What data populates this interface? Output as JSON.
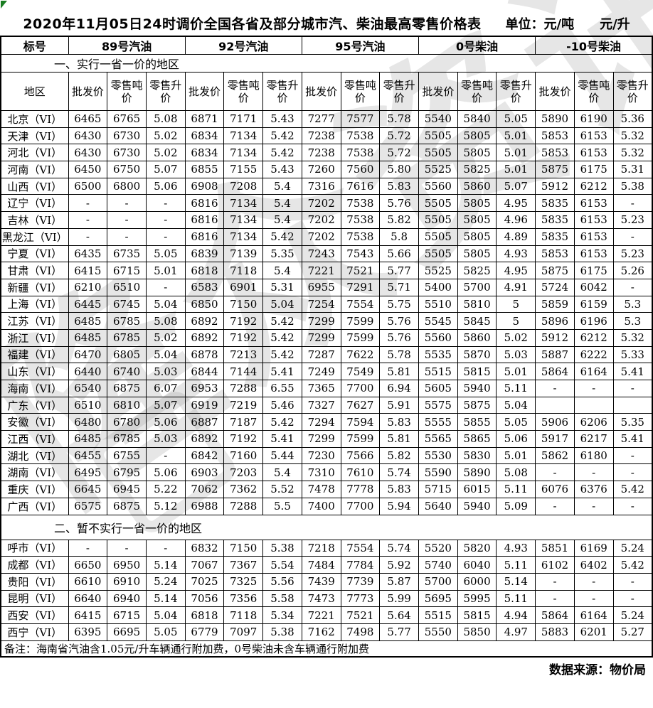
{
  "header": {
    "title": "2020年11月05日24时调价全国各省及部分城市汽、柴油最高零售价格表",
    "unit_ton": "单位：元/吨",
    "unit_liter": "元/升"
  },
  "watermark": {
    "text": "隆众资讯"
  },
  "table": {
    "corner_label": "标号",
    "region_header": "地区",
    "fuel_groups": [
      "89号汽油",
      "92号汽油",
      "95号汽油",
      "0号柴油",
      "-10号柴油"
    ],
    "price_headers": [
      "批发价",
      "零售吨价",
      "零售升价"
    ],
    "sections": [
      {
        "title": "一、实行一省一价的地区",
        "rows": [
          {
            "region": "北京（VI）",
            "values": [
              "6465",
              "6765",
              "5.08",
              "6871",
              "7171",
              "5.43",
              "7277",
              "7577",
              "5.78",
              "5540",
              "5840",
              "5.05",
              "5890",
              "6190",
              "5.36"
            ]
          },
          {
            "region": "天津（VI）",
            "values": [
              "6430",
              "6730",
              "5.02",
              "6834",
              "7134",
              "5.42",
              "7238",
              "7538",
              "5.72",
              "5505",
              "5805",
              "5.01",
              "5853",
              "6153",
              "5.32"
            ]
          },
          {
            "region": "河北（VI）",
            "values": [
              "6430",
              "6730",
              "5.02",
              "6834",
              "7134",
              "5.42",
              "7238",
              "7538",
              "5.72",
              "5505",
              "5805",
              "5.01",
              "5853",
              "6153",
              "5.32"
            ]
          },
          {
            "region": "河南（VI）",
            "values": [
              "6450",
              "6750",
              "5.07",
              "6855",
              "7155",
              "5.43",
              "7260",
              "7560",
              "5.80",
              "5525",
              "5825",
              "5.01",
              "5875",
              "6175",
              "5.31"
            ]
          },
          {
            "region": "山西（VI）",
            "values": [
              "6500",
              "6800",
              "5.06",
              "6908",
              "7208",
              "5.4",
              "7316",
              "7616",
              "5.83",
              "5560",
              "5860",
              "5.07",
              "5912",
              "6212",
              "5.38"
            ]
          },
          {
            "region": "辽宁（VI）",
            "values": [
              "-",
              "-",
              "-",
              "6816",
              "7134",
              "5.4",
              "7202",
              "7538",
              "5.76",
              "5505",
              "5805",
              "4.95",
              "5835",
              "6153",
              "-"
            ]
          },
          {
            "region": "吉林（VI）",
            "values": [
              "-",
              "-",
              "-",
              "6816",
              "7134",
              "5.4",
              "7202",
              "7538",
              "5.82",
              "5505",
              "5805",
              "4.96",
              "5835",
              "6153",
              "5.23"
            ]
          },
          {
            "region": "黑龙江（VI）",
            "values": [
              "-",
              "-",
              "-",
              "6816",
              "7134",
              "5.42",
              "7202",
              "7538",
              "5.8",
              "5505",
              "5805",
              "4.89",
              "5835",
              "6153",
              "-"
            ]
          },
          {
            "region": "宁夏（VI）",
            "values": [
              "6435",
              "6735",
              "5.05",
              "6839",
              "7139",
              "5.35",
              "7243",
              "7543",
              "5.66",
              "5505",
              "5805",
              "4.93",
              "5853",
              "6153",
              "5.23"
            ]
          },
          {
            "region": "甘肃（VI）",
            "values": [
              "6415",
              "6715",
              "5.01",
              "6818",
              "7118",
              "5.4",
              "7221",
              "7521",
              "5.77",
              "5525",
              "5825",
              "4.95",
              "5875",
              "6175",
              "5.26"
            ]
          },
          {
            "region": "新疆（VI）",
            "values": [
              "6210",
              "6510",
              "-",
              "6583",
              "6901",
              "5.31",
              "6955",
              "7291",
              "5.71",
              "5400",
              "5700",
              "4.91",
              "5724",
              "6042",
              "-"
            ]
          },
          {
            "region": "上海（VI）",
            "values": [
              "6445",
              "6745",
              "5.04",
              "6850",
              "7150",
              "5.04",
              "7254",
              "7554",
              "5.75",
              "5510",
              "5810",
              "5",
              "5859",
              "6159",
              "5.3"
            ]
          },
          {
            "region": "江苏（VI）",
            "values": [
              "6485",
              "6785",
              "5.08",
              "6892",
              "7192",
              "5.42",
              "7299",
              "7599",
              "5.76",
              "5545",
              "5845",
              "5",
              "5896",
              "6196",
              "5.3"
            ]
          },
          {
            "region": "浙江（VI）",
            "values": [
              "6485",
              "6785",
              "5.02",
              "6892",
              "7192",
              "5.42",
              "7299",
              "7599",
              "5.76",
              "5560",
              "5860",
              "5.02",
              "5912",
              "6212",
              "5.32"
            ]
          },
          {
            "region": "福建（VI）",
            "values": [
              "6470",
              "6805",
              "5.04",
              "6878",
              "7213",
              "5.42",
              "7287",
              "7622",
              "5.78",
              "5535",
              "5870",
              "5.03",
              "5887",
              "6222",
              "5.33"
            ]
          },
          {
            "region": "山东（VI）",
            "values": [
              "6440",
              "6740",
              "5.03",
              "6844",
              "7144",
              "5.41",
              "7249",
              "7549",
              "5.81",
              "5515",
              "5815",
              "5.01",
              "5864",
              "6164",
              "5.41"
            ]
          },
          {
            "region": "海南（VI）",
            "values": [
              "6540",
              "6875",
              "6.07",
              "6953",
              "7288",
              "6.55",
              "7365",
              "7700",
              "6.94",
              "5605",
              "5940",
              "5.11",
              "-",
              "-",
              "-"
            ]
          },
          {
            "region": "广东（VI）",
            "values": [
              "6510",
              "6810",
              "5.07",
              "6919",
              "7219",
              "5.46",
              "7327",
              "7627",
              "5.91",
              "5575",
              "5875",
              "5.04",
              "",
              "",
              ""
            ]
          },
          {
            "region": "安徽（VI）",
            "values": [
              "6480",
              "6780",
              "5.06",
              "6887",
              "7187",
              "5.42",
              "7294",
              "7594",
              "5.83",
              "5555",
              "5855",
              "5.05",
              "5906",
              "6206",
              "5.35"
            ]
          },
          {
            "region": "江西（VI）",
            "values": [
              "6485",
              "6785",
              "5.03",
              "6892",
              "7192",
              "5.41",
              "7299",
              "7599",
              "5.81",
              "5565",
              "5865",
              "5.06",
              "5917",
              "6217",
              "5.41"
            ]
          },
          {
            "region": "湖北（VI）",
            "values": [
              "6455",
              "6755",
              "-",
              "6842",
              "7160",
              "5.44",
              "7230",
              "7566",
              "5.82",
              "5530",
              "5830",
              "5.01",
              "5862",
              "6180",
              "-"
            ]
          },
          {
            "region": "湖南（VI）",
            "values": [
              "6495",
              "6795",
              "5.06",
              "6903",
              "7203",
              "5.4",
              "7310",
              "7610",
              "5.74",
              "5590",
              "5890",
              "5.08",
              "-",
              "-",
              "-"
            ]
          },
          {
            "region": "重庆（VI）",
            "values": [
              "6645",
              "6945",
              "5.22",
              "7062",
              "7362",
              "5.52",
              "7478",
              "7778",
              "5.83",
              "5715",
              "6015",
              "5.11",
              "6076",
              "6376",
              "5.42"
            ]
          },
          {
            "region": "广西（VI）",
            "values": [
              "6575",
              "6875",
              "5.12",
              "6988",
              "7288",
              "5.5",
              "7400",
              "7700",
              "5.94",
              "5640",
              "5940",
              "5.09",
              "-",
              "-",
              "-"
            ]
          }
        ]
      },
      {
        "title": "二、暂不实行一省一价的地区",
        "rows": [
          {
            "region": "呼市（VI）",
            "values": [
              "-",
              "-",
              "-",
              "6832",
              "7150",
              "5.38",
              "7218",
              "7554",
              "5.74",
              "5520",
              "5820",
              "4.93",
              "5851",
              "6169",
              "5.24"
            ]
          },
          {
            "region": "成都（VI）",
            "values": [
              "6650",
              "6950",
              "5.14",
              "7067",
              "7367",
              "5.54",
              "7484",
              "7784",
              "5.92",
              "5740",
              "6040",
              "5.11",
              "6102",
              "6402",
              "5.42"
            ]
          },
          {
            "region": "贵阳（VI）",
            "values": [
              "6610",
              "6910",
              "5.24",
              "7025",
              "7325",
              "5.56",
              "7439",
              "7739",
              "5.87",
              "5700",
              "6000",
              "5.14",
              "-",
              "-",
              "-"
            ]
          },
          {
            "region": "昆明（VI）",
            "values": [
              "6640",
              "6940",
              "5.14",
              "7056",
              "7356",
              "5.58",
              "7473",
              "7773",
              "5.99",
              "5695",
              "5995",
              "5.11",
              "-",
              "-",
              "-"
            ]
          },
          {
            "region": "西安（VI）",
            "values": [
              "6415",
              "6715",
              "5.04",
              "6818",
              "7118",
              "5.34",
              "7221",
              "7521",
              "5.64",
              "5515",
              "5815",
              "4.94",
              "5864",
              "6164",
              "5.24"
            ]
          },
          {
            "region": "西宁（VI）",
            "values": [
              "6395",
              "6695",
              "5.05",
              "6779",
              "7097",
              "5.38",
              "7162",
              "7498",
              "5.77",
              "5550",
              "5850",
              "4.97",
              "5883",
              "6201",
              "5.27"
            ]
          }
        ]
      }
    ],
    "note": "备注：海南省汽油含1.05元/升车辆通行附加费，0号柴油未含车辆通行附加费"
  },
  "footer": {
    "source": "数据来源：物价局"
  }
}
